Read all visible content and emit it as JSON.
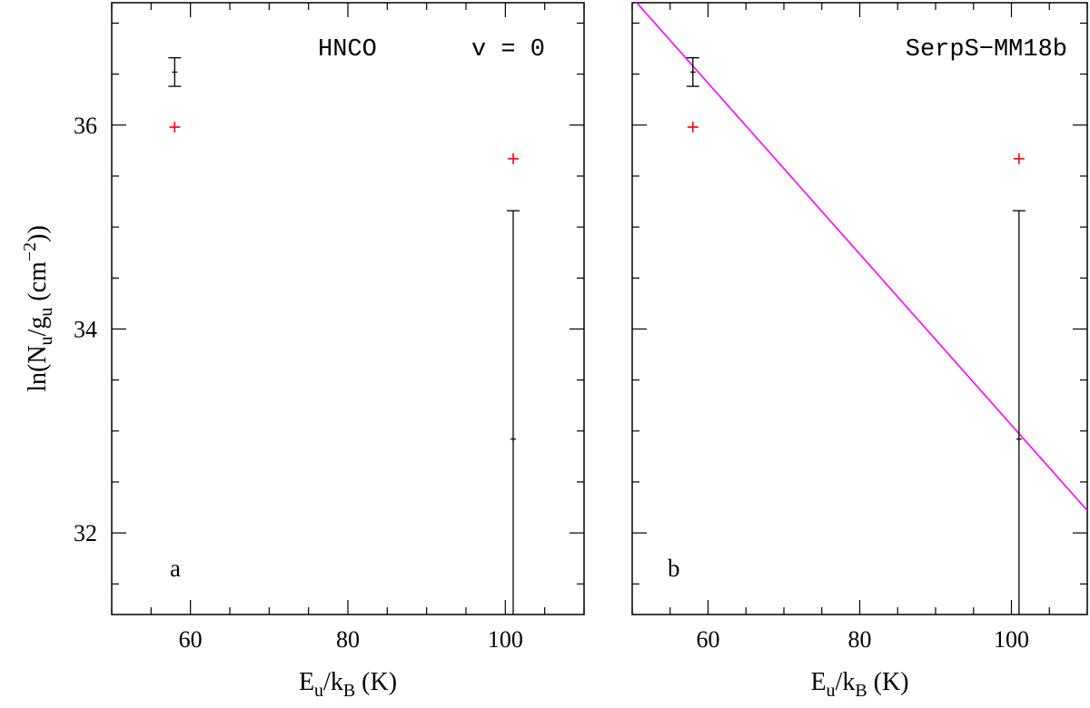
{
  "chart_data": [
    {
      "type": "scatter",
      "panel_label": "a",
      "annotation_left": "HNCO",
      "annotation_right": "v = 0",
      "xlim": [
        50,
        110
      ],
      "ylim": [
        31.2,
        37.2
      ],
      "xticks": [
        60,
        80,
        100
      ],
      "yticks": [
        32,
        34,
        36
      ],
      "grid": false,
      "xlabel": {
        "main": "E",
        "sub1": "u",
        "mid": "/k",
        "sub2": "B",
        "tail": " (K)"
      },
      "ylabel": {
        "main": "ln(N",
        "sub1": "u",
        "mid": "/g",
        "sub2": "u",
        "mid2": " (cm",
        "sup": "−2",
        "tail": "))"
      },
      "series": [
        {
          "color": "#000000",
          "marker": "+",
          "points": [
            {
              "x": 58,
              "y": 36.52,
              "ylo": 36.38,
              "yhi": 36.66
            },
            {
              "x": 101,
              "y": 32.92,
              "ylo": 31.2,
              "yhi": 35.16
            }
          ]
        },
        {
          "color": "#ff0000",
          "marker": "+",
          "points": [
            {
              "x": 58,
              "y": 35.98
            },
            {
              "x": 101,
              "y": 35.67
            }
          ]
        }
      ]
    },
    {
      "type": "scatter",
      "panel_label": "b",
      "annotation_right": "SerpS−MM18b",
      "xlim": [
        50,
        110
      ],
      "ylim": [
        31.2,
        37.2
      ],
      "xticks": [
        60,
        80,
        100
      ],
      "yticks": [
        32,
        34,
        36
      ],
      "grid": false,
      "xlabel": {
        "main": "E",
        "sub1": "u",
        "mid": "/k",
        "sub2": "B",
        "tail": " (K)"
      },
      "series": [
        {
          "color": "#000000",
          "marker": "+",
          "points": [
            {
              "x": 58,
              "y": 36.52,
              "ylo": 36.38,
              "yhi": 36.66
            },
            {
              "x": 101,
              "y": 32.92,
              "ylo": 31.2,
              "yhi": 35.16
            }
          ]
        },
        {
          "color": "#ff0000",
          "marker": "+",
          "points": [
            {
              "x": 58,
              "y": 35.98
            },
            {
              "x": 101,
              "y": 35.67
            }
          ]
        }
      ],
      "fit_line": {
        "color": "#ff00ff",
        "x": [
          50,
          110
        ],
        "y": [
          37.25,
          32.22
        ]
      }
    }
  ]
}
